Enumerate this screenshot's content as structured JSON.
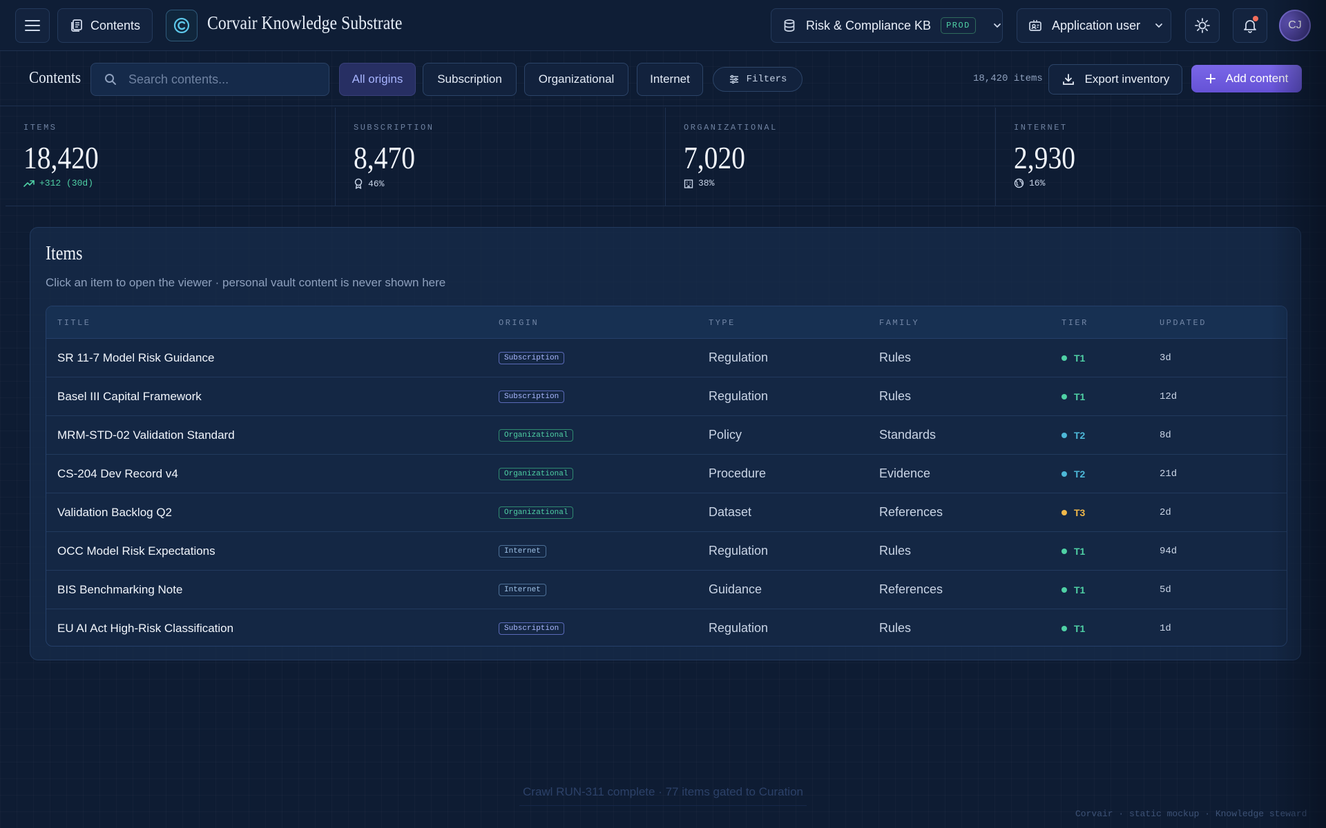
{
  "header": {
    "nav_label": "Contents",
    "brand": "Corvair Knowledge Substrate",
    "kb_label": "Risk & Compliance KB",
    "kb_badge": "PROD",
    "user_label": "Application user",
    "avatar_initials": "CJ"
  },
  "toolbar": {
    "title": "Contents",
    "search_placeholder": "Search contents...",
    "chips": [
      "All origins",
      "Subscription",
      "Organizational",
      "Internet"
    ],
    "active_chip": "All origins",
    "filters_label": "Filters",
    "item_count": "18,420 items",
    "export_label": "Export inventory",
    "add_label": "Add content"
  },
  "stats": [
    {
      "label": "ITEMS",
      "value": "18,420",
      "sub": "+312 (30d)",
      "icon": "trend-up-icon"
    },
    {
      "label": "SUBSCRIPTION",
      "value": "8,470",
      "sub": "46%",
      "icon": "award-icon"
    },
    {
      "label": "ORGANIZATIONAL",
      "value": "7,020",
      "sub": "38%",
      "icon": "building-icon"
    },
    {
      "label": "INTERNET",
      "value": "2,930",
      "sub": "16%",
      "icon": "globe-icon"
    }
  ],
  "items": {
    "title": "Items",
    "subtitle": "Click an item to open the viewer · personal vault content is never shown here",
    "columns": [
      "TITLE",
      "ORIGIN",
      "TYPE",
      "FAMILY",
      "TIER",
      "UPDATED"
    ],
    "rows": [
      {
        "title": "SR 11-7 Model Risk Guidance",
        "origin": "Subscription",
        "type": "Regulation",
        "family": "Rules",
        "tier": "T1",
        "updated": "3d"
      },
      {
        "title": "Basel III Capital Framework",
        "origin": "Subscription",
        "type": "Regulation",
        "family": "Rules",
        "tier": "T1",
        "updated": "12d"
      },
      {
        "title": "MRM-STD-02 Validation Standard",
        "origin": "Organizational",
        "type": "Policy",
        "family": "Standards",
        "tier": "T2",
        "updated": "8d"
      },
      {
        "title": "CS-204 Dev Record v4",
        "origin": "Organizational",
        "type": "Procedure",
        "family": "Evidence",
        "tier": "T2",
        "updated": "21d"
      },
      {
        "title": "Validation Backlog Q2",
        "origin": "Organizational",
        "type": "Dataset",
        "family": "References",
        "tier": "T3",
        "updated": "2d"
      },
      {
        "title": "OCC Model Risk Expectations",
        "origin": "Internet",
        "type": "Regulation",
        "family": "Rules",
        "tier": "T1",
        "updated": "94d"
      },
      {
        "title": "BIS Benchmarking Note",
        "origin": "Internet",
        "type": "Guidance",
        "family": "References",
        "tier": "T1",
        "updated": "5d"
      },
      {
        "title": "EU AI Act High-Risk Classification",
        "origin": "Subscription",
        "type": "Regulation",
        "family": "Rules",
        "tier": "T1",
        "updated": "1d"
      }
    ]
  },
  "tier_colors": {
    "T1": "#4fd1a5",
    "T2": "#4db8d8",
    "T3": "#f0b84a"
  },
  "toast": "Crawl RUN-311 complete · 77 items gated to Curation",
  "footnote": "Corvair · static mockup · Knowledge steward"
}
